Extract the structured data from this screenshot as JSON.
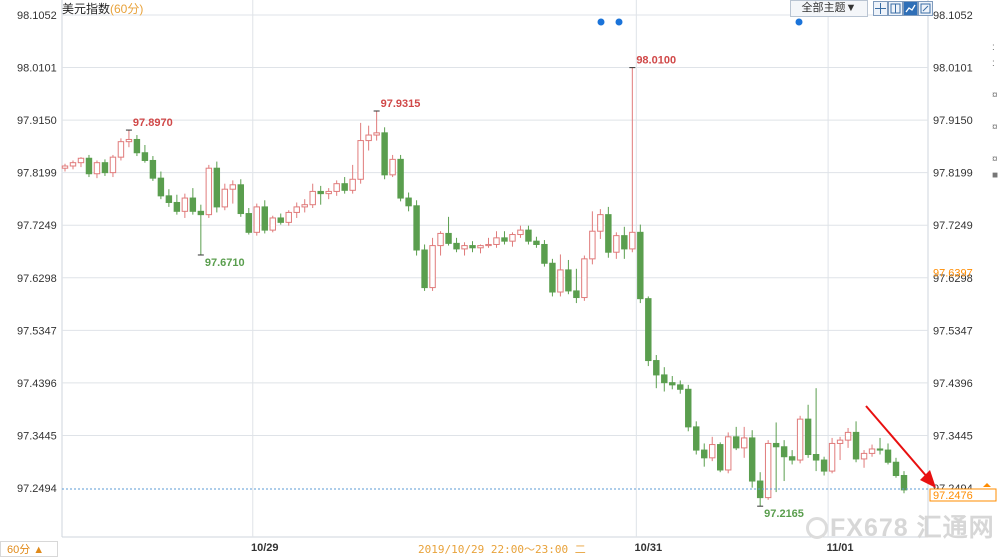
{
  "header": {
    "title": "美元指数",
    "interval": "(60分)"
  },
  "toolbar": {
    "theme_label": "全部主题▼",
    "tool_icons": [
      "crosshair-icon",
      "split-view-icon",
      "line-chart-icon",
      "zoom-icon"
    ]
  },
  "bottom": {
    "period_button": "60分 ▲",
    "crosshair_time": "2019/10/29 22:00～23:00 二"
  },
  "watermark": {
    "text": "FX678 汇通网"
  },
  "colors": {
    "up": "#e07b7b",
    "down": "#5a9e4e",
    "grid": "#dfe3e8",
    "last_price_line": "#5b9bd5",
    "current_price_label": "#ff8c00",
    "arrow": "#e81010",
    "event_dot": "#1a73d9"
  },
  "chart_data": {
    "type": "candlestick",
    "y_ticks": [
      "98.1052",
      "98.0101",
      "97.9150",
      "97.8199",
      "97.7249",
      "97.6298",
      "97.5347",
      "97.4396",
      "97.3445",
      "97.2494"
    ],
    "ylim": [
      97.2494,
      98.1052
    ],
    "x_tick_labels": [
      "10/29",
      "10/31",
      "11/01"
    ],
    "marked_price_right": "97.6397",
    "current_price": "97.2476",
    "high_low_annotations": [
      {
        "label": "97.8970",
        "kind": "high"
      },
      {
        "label": "97.6710",
        "kind": "low"
      },
      {
        "label": "97.9315",
        "kind": "high"
      },
      {
        "label": "98.0100",
        "kind": "high"
      },
      {
        "label": "97.2165",
        "kind": "low"
      }
    ],
    "candles": [
      [
        97.828,
        97.836,
        97.822,
        97.832
      ],
      [
        97.832,
        97.842,
        97.826,
        97.838
      ],
      [
        97.838,
        97.848,
        97.83,
        97.846
      ],
      [
        97.846,
        97.852,
        97.812,
        97.818
      ],
      [
        97.818,
        97.842,
        97.81,
        97.838
      ],
      [
        97.838,
        97.844,
        97.814,
        97.82
      ],
      [
        97.82,
        97.852,
        97.812,
        97.848
      ],
      [
        97.848,
        97.882,
        97.842,
        97.876
      ],
      [
        97.876,
        97.897,
        97.866,
        97.88
      ],
      [
        97.88,
        97.888,
        97.85,
        97.856
      ],
      [
        97.856,
        97.87,
        97.838,
        97.842
      ],
      [
        97.842,
        97.85,
        97.805,
        97.81
      ],
      [
        97.81,
        97.822,
        97.772,
        97.778
      ],
      [
        97.778,
        97.79,
        97.758,
        97.766
      ],
      [
        97.766,
        97.78,
        97.744,
        97.75
      ],
      [
        97.75,
        97.782,
        97.738,
        97.774
      ],
      [
        97.774,
        97.792,
        97.744,
        97.75
      ],
      [
        97.75,
        97.762,
        97.671,
        97.744
      ],
      [
        97.744,
        97.834,
        97.738,
        97.828
      ],
      [
        97.828,
        97.84,
        97.748,
        97.758
      ],
      [
        97.758,
        97.8,
        97.752,
        97.79
      ],
      [
        97.79,
        97.806,
        97.764,
        97.798
      ],
      [
        97.798,
        97.808,
        97.74,
        97.746
      ],
      [
        97.746,
        97.756,
        97.708,
        97.712
      ],
      [
        97.712,
        97.764,
        97.706,
        97.758
      ],
      [
        97.758,
        97.77,
        97.71,
        97.716
      ],
      [
        97.716,
        97.742,
        97.712,
        97.738
      ],
      [
        97.738,
        97.746,
        97.726,
        97.73
      ],
      [
        97.73,
        97.752,
        97.724,
        97.748
      ],
      [
        97.748,
        97.766,
        97.738,
        97.758
      ],
      [
        97.758,
        97.772,
        97.748,
        97.762
      ],
      [
        97.762,
        97.8,
        97.756,
        97.786
      ],
      [
        97.786,
        97.796,
        97.762,
        97.782
      ],
      [
        97.782,
        97.792,
        97.772,
        97.786
      ],
      [
        97.786,
        97.806,
        97.778,
        97.8
      ],
      [
        97.8,
        97.812,
        97.782,
        97.788
      ],
      [
        97.788,
        97.834,
        97.782,
        97.808
      ],
      [
        97.808,
        97.91,
        97.8,
        97.878
      ],
      [
        97.878,
        97.905,
        97.86,
        97.888
      ],
      [
        97.888,
        97.9315,
        97.878,
        97.892
      ],
      [
        97.892,
        97.902,
        97.808,
        97.816
      ],
      [
        97.816,
        97.852,
        97.812,
        97.844
      ],
      [
        97.844,
        97.852,
        97.768,
        97.774
      ],
      [
        97.774,
        97.784,
        97.75,
        97.76
      ],
      [
        97.76,
        97.77,
        97.67,
        97.68
      ],
      [
        97.68,
        97.69,
        97.606,
        97.612
      ],
      [
        97.612,
        97.702,
        97.606,
        97.688
      ],
      [
        97.688,
        97.714,
        97.67,
        97.71
      ],
      [
        97.71,
        97.74,
        97.688,
        97.692
      ],
      [
        97.692,
        97.702,
        97.676,
        97.682
      ],
      [
        97.682,
        97.694,
        97.67,
        97.688
      ],
      [
        97.688,
        97.696,
        97.676,
        97.684
      ],
      [
        97.684,
        97.69,
        97.674,
        97.688
      ],
      [
        97.688,
        97.702,
        97.684,
        97.69
      ],
      [
        97.69,
        97.714,
        97.684,
        97.702
      ],
      [
        97.702,
        97.714,
        97.69,
        97.696
      ],
      [
        97.696,
        97.712,
        97.686,
        97.708
      ],
      [
        97.708,
        97.724,
        97.702,
        97.716
      ],
      [
        97.716,
        97.724,
        97.69,
        97.696
      ],
      [
        97.696,
        97.704,
        97.684,
        97.69
      ],
      [
        97.69,
        97.698,
        97.65,
        97.656
      ],
      [
        97.656,
        97.664,
        97.596,
        97.604
      ],
      [
        97.604,
        97.672,
        97.596,
        97.644
      ],
      [
        97.644,
        97.662,
        97.6,
        97.606
      ],
      [
        97.606,
        97.646,
        97.584,
        97.594
      ],
      [
        97.594,
        97.67,
        97.588,
        97.664
      ],
      [
        97.664,
        97.75,
        97.654,
        97.714
      ],
      [
        97.714,
        97.754,
        97.7,
        97.744
      ],
      [
        97.744,
        97.758,
        97.666,
        97.676
      ],
      [
        97.676,
        97.712,
        97.664,
        97.706
      ],
      [
        97.706,
        97.722,
        97.664,
        97.682
      ],
      [
        97.682,
        98.01,
        97.676,
        97.712
      ],
      [
        97.712,
        97.726,
        97.584,
        97.592
      ],
      [
        97.592,
        97.596,
        97.47,
        97.48
      ],
      [
        97.48,
        97.49,
        97.43,
        97.454
      ],
      [
        97.454,
        97.468,
        97.424,
        97.44
      ],
      [
        97.44,
        97.452,
        97.428,
        97.436
      ],
      [
        97.436,
        97.444,
        97.42,
        97.428
      ],
      [
        97.428,
        97.436,
        97.352,
        97.36
      ],
      [
        97.36,
        97.37,
        97.31,
        97.318
      ],
      [
        97.318,
        97.33,
        97.288,
        97.304
      ],
      [
        97.304,
        97.342,
        97.298,
        97.328
      ],
      [
        97.328,
        97.332,
        97.278,
        97.282
      ],
      [
        97.282,
        97.35,
        97.276,
        97.342
      ],
      [
        97.342,
        97.36,
        97.318,
        97.322
      ],
      [
        97.322,
        97.36,
        97.304,
        97.34
      ],
      [
        97.34,
        97.354,
        97.25,
        97.262
      ],
      [
        97.262,
        97.278,
        97.2165,
        97.232
      ],
      [
        97.232,
        97.336,
        97.228,
        97.33
      ],
      [
        97.33,
        97.368,
        97.242,
        97.324
      ],
      [
        97.324,
        97.336,
        97.262,
        97.306
      ],
      [
        97.306,
        97.318,
        97.292,
        97.3
      ],
      [
        97.3,
        97.38,
        97.294,
        97.374
      ],
      [
        97.374,
        97.4,
        97.304,
        97.31
      ],
      [
        97.31,
        97.43,
        97.28,
        97.3
      ],
      [
        97.3,
        97.306,
        97.272,
        97.28
      ],
      [
        97.28,
        97.34,
        97.276,
        97.33
      ],
      [
        97.33,
        97.342,
        97.3,
        97.336
      ],
      [
        97.336,
        97.358,
        97.322,
        97.35
      ],
      [
        97.35,
        97.37,
        97.296,
        97.302
      ],
      [
        97.302,
        97.318,
        97.286,
        97.312
      ],
      [
        97.312,
        97.328,
        97.306,
        97.32
      ],
      [
        97.32,
        97.34,
        97.31,
        97.318
      ],
      [
        97.318,
        97.33,
        97.292,
        97.296
      ],
      [
        97.296,
        97.304,
        97.268,
        97.272
      ],
      [
        97.272,
        97.28,
        97.24,
        97.246
      ]
    ]
  }
}
